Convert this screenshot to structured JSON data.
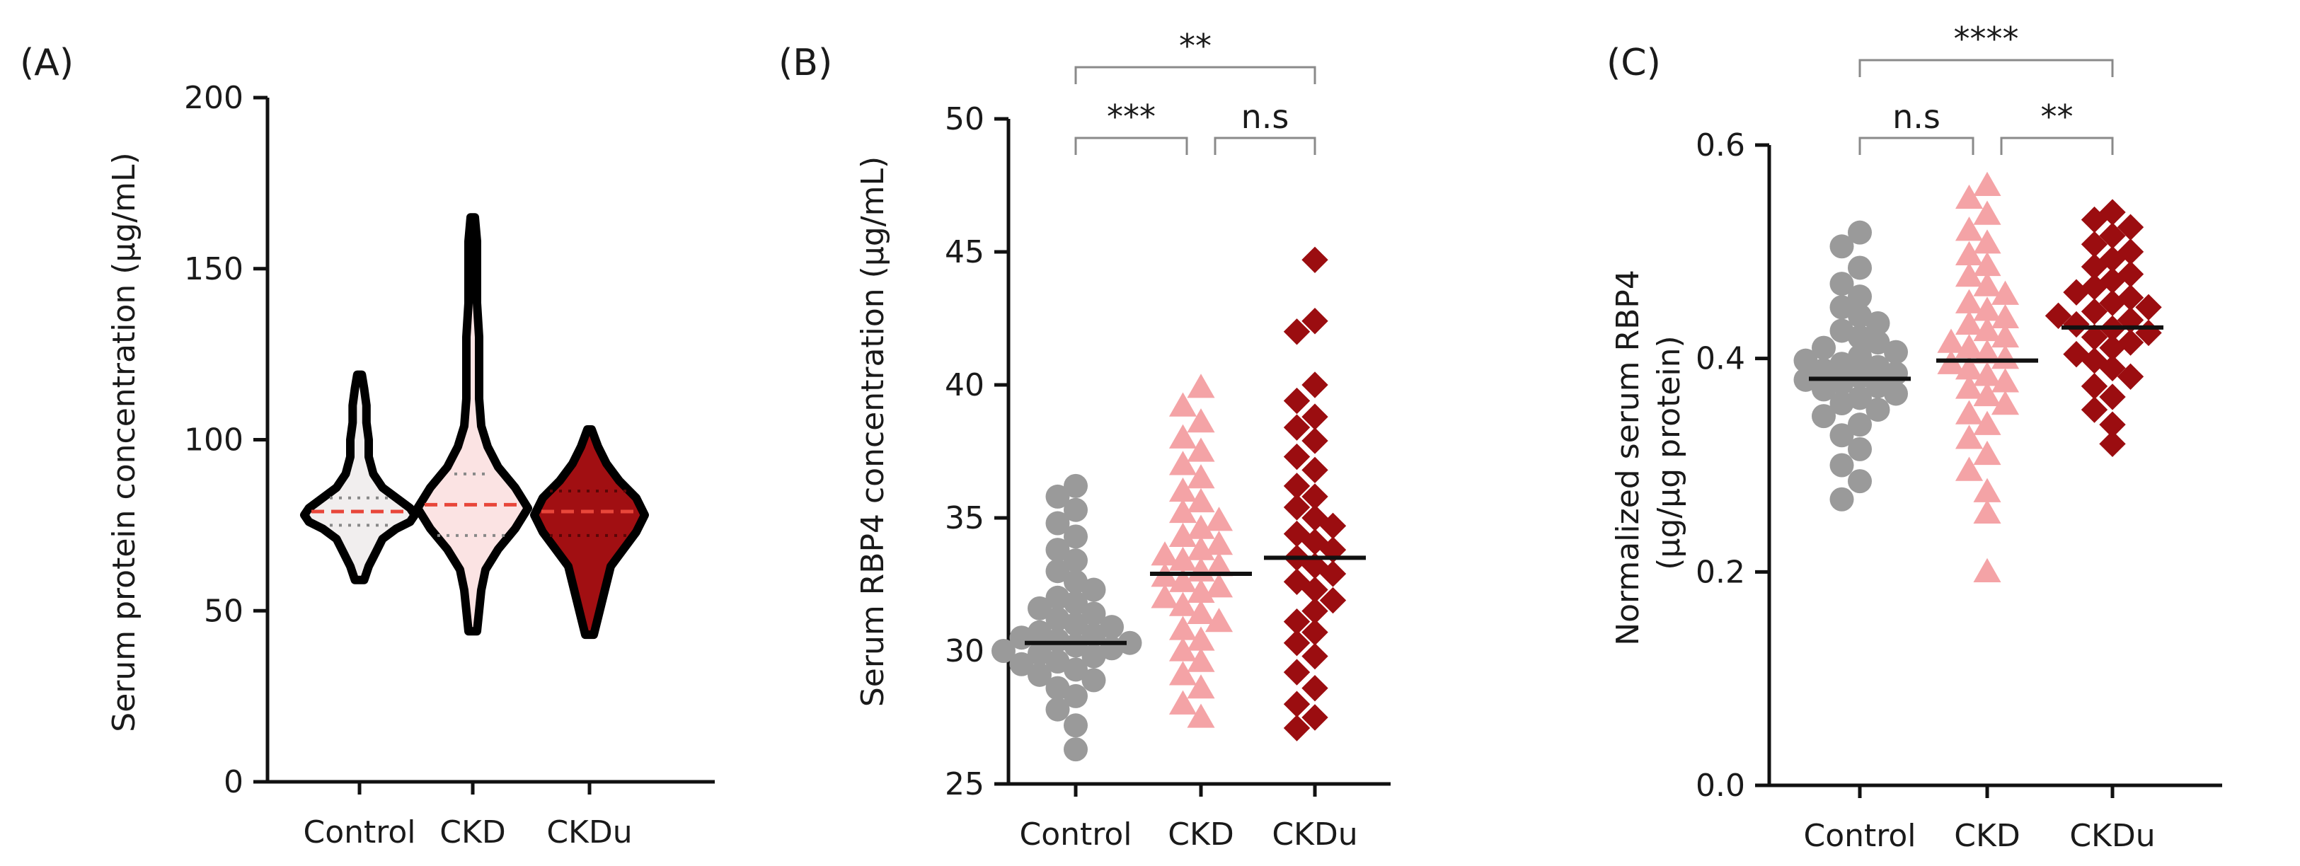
{
  "colors": {
    "control": "#9a9a9a",
    "ckd": "#f4a3a6",
    "ckdu": "#9b0d10",
    "median_line": "#e8463a",
    "quartile_line": "#888888"
  },
  "chart_data": [
    {
      "panel_label": "(A)",
      "type": "violin",
      "ylabel": "Serum protein concentration (µg/mL)",
      "ylim": [
        0,
        200
      ],
      "yticks": [
        "0",
        "50",
        "100",
        "150",
        "200"
      ],
      "categories": [
        "Control",
        "CKD",
        "CKDu"
      ],
      "violins": [
        {
          "name": "Control",
          "min": 59,
          "max": 119,
          "q1": 75,
          "median": 79,
          "q3": 83,
          "profile": [
            [
              59,
              2
            ],
            [
              63,
              4
            ],
            [
              67,
              7
            ],
            [
              71,
              10
            ],
            [
              74,
              16
            ],
            [
              76,
              22
            ],
            [
              78,
              24
            ],
            [
              80,
              22
            ],
            [
              83,
              16
            ],
            [
              86,
              10
            ],
            [
              90,
              6
            ],
            [
              95,
              4
            ],
            [
              100,
              4
            ],
            [
              105,
              3
            ],
            [
              110,
              3
            ],
            [
              115,
              2
            ],
            [
              119,
              1
            ]
          ]
        },
        {
          "name": "CKD",
          "min": 44,
          "max": 165,
          "q1": 72,
          "median": 81,
          "q3": 90,
          "profile": [
            [
              44,
              2
            ],
            [
              50,
              3
            ],
            [
              56,
              4
            ],
            [
              62,
              6
            ],
            [
              68,
              12
            ],
            [
              74,
              20
            ],
            [
              80,
              26
            ],
            [
              86,
              20
            ],
            [
              92,
              12
            ],
            [
              98,
              7
            ],
            [
              104,
              4
            ],
            [
              112,
              3
            ],
            [
              120,
              3
            ],
            [
              130,
              3
            ],
            [
              140,
              2
            ],
            [
              150,
              2
            ],
            [
              158,
              2
            ],
            [
              165,
              1
            ]
          ]
        },
        {
          "name": "CKDu",
          "min": 43,
          "max": 103,
          "q1": 72,
          "median": 79,
          "q3": 85,
          "profile": [
            [
              43,
              2
            ],
            [
              48,
              4
            ],
            [
              53,
              6
            ],
            [
              58,
              8
            ],
            [
              63,
              10
            ],
            [
              68,
              16
            ],
            [
              73,
              22
            ],
            [
              78,
              26
            ],
            [
              83,
              22
            ],
            [
              88,
              14
            ],
            [
              93,
              8
            ],
            [
              98,
              4
            ],
            [
              103,
              1
            ]
          ]
        }
      ]
    },
    {
      "panel_label": "(B)",
      "type": "scatter",
      "ylabel": "Serum RBP4 concentration (µg/mL)",
      "ylim": [
        25,
        50
      ],
      "yticks": [
        "25",
        "30",
        "35",
        "40",
        "45",
        "50"
      ],
      "categories": [
        "Control",
        "CKD",
        "CKDu"
      ],
      "series": [
        {
          "name": "Control",
          "marker": "circle",
          "mean": 30.3,
          "values": [
            26.3,
            27.2,
            27.8,
            28.3,
            28.6,
            28.9,
            29.1,
            29.3,
            29.5,
            29.6,
            29.8,
            29.9,
            30.0,
            30.1,
            30.2,
            30.3,
            30.4,
            30.5,
            30.6,
            30.7,
            30.9,
            31.0,
            31.2,
            31.4,
            31.6,
            31.8,
            32.0,
            32.3,
            32.6,
            33.0,
            33.4,
            33.8,
            34.3,
            34.8,
            35.3,
            35.8,
            36.2
          ]
        },
        {
          "name": "CKD",
          "marker": "triangle",
          "mean": 32.9,
          "values": [
            27.5,
            28.0,
            28.6,
            29.1,
            29.6,
            30.0,
            30.4,
            30.8,
            31.1,
            31.4,
            31.7,
            32.0,
            32.2,
            32.4,
            32.6,
            32.8,
            33.0,
            33.2,
            33.4,
            33.6,
            33.8,
            34.0,
            34.3,
            34.6,
            34.9,
            35.2,
            35.6,
            36.0,
            36.5,
            37.0,
            37.5,
            38.0,
            38.6,
            39.2,
            39.9
          ]
        },
        {
          "name": "CKDu",
          "marker": "diamond",
          "mean": 33.5,
          "values": [
            27.1,
            27.5,
            28.0,
            28.6,
            29.2,
            29.8,
            30.3,
            30.7,
            31.1,
            31.5,
            31.9,
            32.3,
            32.6,
            32.9,
            33.2,
            33.5,
            33.8,
            34.1,
            34.4,
            34.7,
            35.0,
            35.4,
            35.8,
            36.2,
            36.8,
            37.3,
            37.9,
            38.4,
            38.8,
            39.4,
            40.0,
            42.0,
            42.4,
            44.7
          ]
        }
      ],
      "comparisons": [
        {
          "from": "Control",
          "to": "CKD",
          "label": "***",
          "level": 0
        },
        {
          "from": "CKD",
          "to": "CKDu",
          "label": "n.s",
          "level": 0
        },
        {
          "from": "Control",
          "to": "CKDu",
          "label": "**",
          "level": 1
        }
      ]
    },
    {
      "panel_label": "(C)",
      "type": "scatter",
      "ylabel_line1": "Normalized serum RBP4",
      "ylabel_line2": "(µg/µg protein)",
      "ylim": [
        0.0,
        0.6
      ],
      "yticks": [
        "0.0",
        "0.2",
        "0.4",
        "0.6"
      ],
      "categories": [
        "Control",
        "CKD",
        "CKDu"
      ],
      "series": [
        {
          "name": "Control",
          "marker": "circle",
          "mean": 0.381,
          "values": [
            0.268,
            0.285,
            0.3,
            0.315,
            0.328,
            0.338,
            0.346,
            0.352,
            0.358,
            0.363,
            0.367,
            0.371,
            0.374,
            0.377,
            0.38,
            0.383,
            0.386,
            0.389,
            0.392,
            0.395,
            0.398,
            0.402,
            0.406,
            0.41,
            0.415,
            0.42,
            0.426,
            0.433,
            0.44,
            0.448,
            0.458,
            0.47,
            0.485,
            0.505,
            0.518
          ]
        },
        {
          "name": "CKD",
          "marker": "triangle",
          "mean": 0.398,
          "values": [
            0.2,
            0.255,
            0.275,
            0.295,
            0.31,
            0.325,
            0.338,
            0.348,
            0.357,
            0.365,
            0.372,
            0.378,
            0.384,
            0.39,
            0.395,
            0.4,
            0.405,
            0.41,
            0.415,
            0.42,
            0.426,
            0.432,
            0.438,
            0.445,
            0.452,
            0.46,
            0.468,
            0.477,
            0.487,
            0.497,
            0.508,
            0.52,
            0.535,
            0.55,
            0.562
          ]
        },
        {
          "name": "CKDu",
          "marker": "diamond",
          "mean": 0.429,
          "values": [
            0.32,
            0.338,
            0.352,
            0.364,
            0.374,
            0.383,
            0.391,
            0.398,
            0.404,
            0.41,
            0.415,
            0.42,
            0.424,
            0.428,
            0.432,
            0.436,
            0.44,
            0.444,
            0.448,
            0.452,
            0.457,
            0.462,
            0.467,
            0.473,
            0.479,
            0.486,
            0.493,
            0.5,
            0.507,
            0.515,
            0.523,
            0.53,
            0.537
          ]
        }
      ],
      "comparisons": [
        {
          "from": "Control",
          "to": "CKD",
          "label": "n.s",
          "level": 0
        },
        {
          "from": "CKD",
          "to": "CKDu",
          "label": "**",
          "level": 0
        },
        {
          "from": "Control",
          "to": "CKDu",
          "label": "****",
          "level": 1
        }
      ]
    }
  ]
}
